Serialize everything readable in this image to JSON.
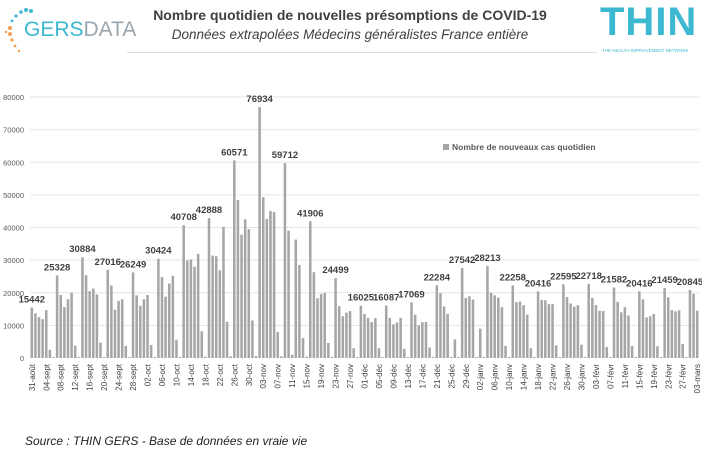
{
  "header": {
    "title": "Nombre quotidien de nouvelles présomptions de COVID-19",
    "subtitle": "Données extrapolées Médecins généralistes France entière",
    "logo_left": "GERSDATA",
    "logo_right": "THIN",
    "logo_right_tagline": "THE HEALTH IMPROVEMENT NETWORK"
  },
  "footer": {
    "source": "Source : THIN GERS - Base de données en vraie vie"
  },
  "colors": {
    "bar": "#a6a6a6",
    "grid": "#e6e6e6",
    "accent": "#3cb8d0"
  },
  "chart_data": {
    "type": "bar",
    "title": "Nombre quotidien de nouvelles présomptions de COVID-19",
    "legend": {
      "label": "Nombre de nouveaux cas quotidien",
      "position": "top-right"
    },
    "ylim": [
      0,
      80000
    ],
    "yticks": [
      0,
      10000,
      20000,
      30000,
      40000,
      50000,
      60000,
      70000,
      80000
    ],
    "grid": true,
    "start_date": "31-août",
    "xtick_labels": [
      "31-août",
      "04-sept",
      "08-sept",
      "12-sept",
      "16-sept",
      "20-sept",
      "24-sept",
      "28-sept",
      "02-oct",
      "06-oct",
      "10-oct",
      "14-oct",
      "18-oct",
      "22-oct",
      "26-oct",
      "30-oct",
      "03-nov",
      "07-nov",
      "11-nov",
      "15-nov",
      "19-nov",
      "23-nov",
      "27-nov",
      "01-déc",
      "05-déc",
      "09-déc",
      "13-déc",
      "17-déc",
      "21-déc",
      "25-déc",
      "29-déc",
      "02-janv",
      "06-janv",
      "10-janv",
      "14-janv",
      "18-janv",
      "22-janv",
      "26-janv",
      "30-janv",
      "03-févr",
      "07-févr",
      "11-févr",
      "15-févr",
      "19-févr",
      "23-févr",
      "27-févr",
      "03-mars"
    ],
    "values": [
      15442,
      13700,
      12500,
      11900,
      14700,
      2500,
      300,
      25328,
      19300,
      15600,
      18000,
      20000,
      3800,
      300,
      30884,
      25400,
      20500,
      21300,
      19500,
      4700,
      300,
      27016,
      22200,
      14800,
      17500,
      18000,
      3700,
      300,
      26249,
      19200,
      16000,
      18000,
      19300,
      4000,
      300,
      30424,
      24800,
      18800,
      22800,
      25200,
      5600,
      300,
      40708,
      29900,
      30200,
      28000,
      31900,
      8200,
      400,
      42888,
      31400,
      31200,
      26900,
      40200,
      11100,
      500,
      60571,
      48400,
      37800,
      42500,
      39500,
      11500,
      600,
      76934,
      49300,
      42600,
      45100,
      44700,
      8000,
      500,
      59712,
      39000,
      1000,
      36300,
      28500,
      6100,
      400,
      41906,
      26300,
      18300,
      19600,
      20000,
      4600,
      300,
      24499,
      15900,
      12800,
      13900,
      14400,
      3000,
      300,
      16025,
      13500,
      12300,
      11000,
      12200,
      3000,
      300,
      16087,
      12300,
      10300,
      10900,
      12300,
      2800,
      300,
      17069,
      13300,
      10000,
      11000,
      11000,
      3200,
      300,
      22284,
      19900,
      15800,
      13500,
      300,
      5700,
      300,
      27542,
      18400,
      18900,
      17900,
      300,
      9000,
      300,
      28213,
      20000,
      19200,
      18500,
      15600,
      3700,
      300,
      22258,
      17100,
      17300,
      16200,
      13300,
      3000,
      300,
      20416,
      17800,
      17700,
      16500,
      16500,
      3900,
      300,
      22595,
      18700,
      16700,
      15700,
      16200,
      4100,
      300,
      22718,
      18400,
      16200,
      14500,
      14400,
      3400,
      300,
      21582,
      17200,
      14000,
      15600,
      13000,
      3700,
      300,
      20416,
      18000,
      12400,
      12800,
      13500,
      3600,
      300,
      21459,
      18600,
      14700,
      14300,
      14600,
      4300,
      300,
      20845,
      19700,
      14500
    ],
    "data_labels": [
      {
        "index": 0,
        "text": "15442"
      },
      {
        "index": 7,
        "text": "25328"
      },
      {
        "index": 14,
        "text": "30884"
      },
      {
        "index": 21,
        "text": "27016"
      },
      {
        "index": 28,
        "text": "26249"
      },
      {
        "index": 35,
        "text": "30424"
      },
      {
        "index": 42,
        "text": "40708"
      },
      {
        "index": 49,
        "text": "42888"
      },
      {
        "index": 56,
        "text": "60571"
      },
      {
        "index": 63,
        "text": "76934"
      },
      {
        "index": 70,
        "text": "59712"
      },
      {
        "index": 77,
        "text": "41906"
      },
      {
        "index": 84,
        "text": "24499"
      },
      {
        "index": 91,
        "text": "16025"
      },
      {
        "index": 98,
        "text": "16087"
      },
      {
        "index": 105,
        "text": "17069"
      },
      {
        "index": 112,
        "text": "22284"
      },
      {
        "index": 119,
        "text": "27542"
      },
      {
        "index": 126,
        "text": "28213"
      },
      {
        "index": 133,
        "text": "22258"
      },
      {
        "index": 140,
        "text": "20416"
      },
      {
        "index": 147,
        "text": "22595"
      },
      {
        "index": 154,
        "text": "22718"
      },
      {
        "index": 161,
        "text": "21582"
      },
      {
        "index": 168,
        "text": "20416"
      },
      {
        "index": 175,
        "text": "21459"
      },
      {
        "index": 182,
        "text": "20845"
      }
    ]
  }
}
